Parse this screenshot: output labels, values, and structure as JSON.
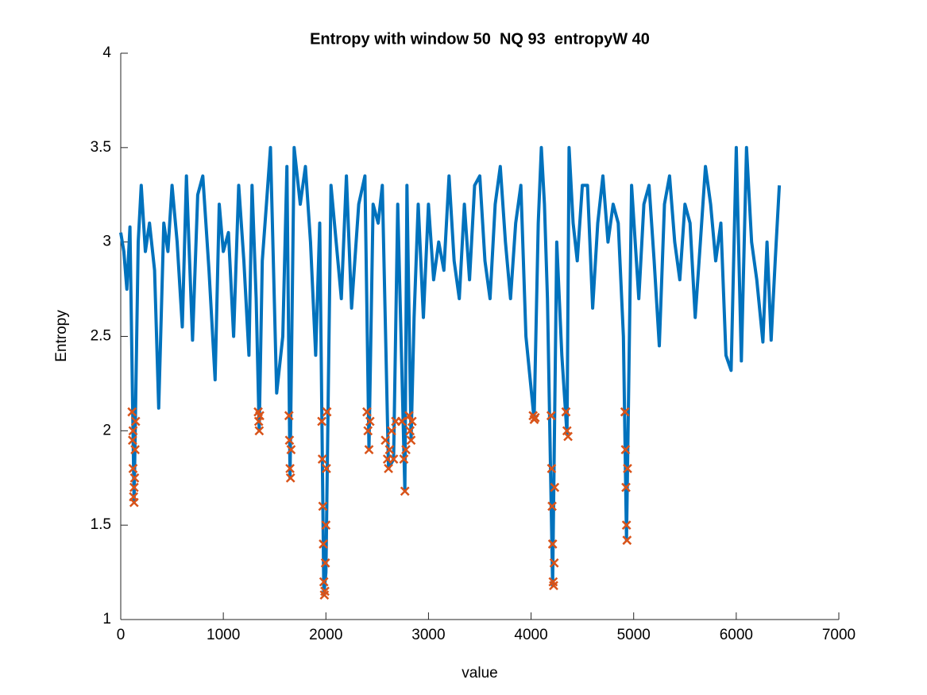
{
  "chart_data": {
    "type": "line",
    "title": "Entropy with window 50  NQ 93  entropyW 40",
    "xlabel": "value",
    "ylabel": "Entropy",
    "xlim": [
      0,
      7000
    ],
    "xticks": [
      0,
      1000,
      2000,
      3000,
      4000,
      5000,
      6000,
      7000
    ],
    "ylim": [
      1,
      4
    ],
    "yticks": [
      1,
      1.5,
      2,
      2.5,
      3,
      3.5,
      4
    ],
    "series": [
      {
        "type": "line",
        "color": "#0072bd",
        "x": [
          0,
          30,
          60,
          90,
          130,
          170,
          200,
          240,
          280,
          330,
          370,
          420,
          460,
          500,
          550,
          600,
          640,
          700,
          750,
          800,
          860,
          920,
          960,
          1000,
          1050,
          1100,
          1150,
          1200,
          1250,
          1280,
          1320,
          1350,
          1380,
          1420,
          1460,
          1520,
          1580,
          1620,
          1650,
          1690,
          1750,
          1800,
          1850,
          1900,
          1940,
          1980,
          2000,
          2050,
          2100,
          2150,
          2200,
          2250,
          2320,
          2380,
          2420,
          2460,
          2510,
          2550,
          2610,
          2660,
          2700,
          2770,
          2790,
          2830,
          2860,
          2900,
          2950,
          3000,
          3050,
          3100,
          3150,
          3200,
          3250,
          3300,
          3350,
          3400,
          3450,
          3500,
          3550,
          3600,
          3650,
          3700,
          3750,
          3800,
          3850,
          3900,
          3950,
          4030,
          4070,
          4100,
          4130,
          4160,
          4210,
          4250,
          4300,
          4350,
          4370,
          4410,
          4450,
          4500,
          4550,
          4600,
          4650,
          4700,
          4750,
          4800,
          4850,
          4900,
          4930,
          4980,
          5050,
          5100,
          5150,
          5200,
          5250,
          5300,
          5350,
          5400,
          5450,
          5500,
          5550,
          5600,
          5650,
          5700,
          5750,
          5800,
          5850,
          5900,
          5950,
          6000,
          6050,
          6100,
          6150,
          6200,
          6260,
          6300,
          6340,
          6380,
          6420
        ],
        "values": [
          3.05,
          2.95,
          2.75,
          3.08,
          1.62,
          3.0,
          3.3,
          2.95,
          3.1,
          2.85,
          2.12,
          3.1,
          2.95,
          3.3,
          3.0,
          2.55,
          3.35,
          2.48,
          3.25,
          3.35,
          2.85,
          2.27,
          3.2,
          2.95,
          3.05,
          2.5,
          3.3,
          2.9,
          2.4,
          3.3,
          2.7,
          2.0,
          2.9,
          3.2,
          3.5,
          2.2,
          2.5,
          3.4,
          1.75,
          3.5,
          3.2,
          3.4,
          3.0,
          2.4,
          3.1,
          1.13,
          1.25,
          3.3,
          3.0,
          2.7,
          3.35,
          2.65,
          3.2,
          3.35,
          1.9,
          3.2,
          3.1,
          3.3,
          1.8,
          1.85,
          3.2,
          1.68,
          3.3,
          1.95,
          2.6,
          3.2,
          2.6,
          3.2,
          2.8,
          3.0,
          2.85,
          3.35,
          2.9,
          2.7,
          3.2,
          2.8,
          3.3,
          3.35,
          2.9,
          2.7,
          3.2,
          3.4,
          3.0,
          2.7,
          3.1,
          3.3,
          2.5,
          2.06,
          3.1,
          3.5,
          3.2,
          2.7,
          1.18,
          3.0,
          2.4,
          1.98,
          3.5,
          3.1,
          2.9,
          3.3,
          3.3,
          2.65,
          3.1,
          3.35,
          3.0,
          3.2,
          3.1,
          2.5,
          1.42,
          3.3,
          2.7,
          3.2,
          3.3,
          2.9,
          2.45,
          3.2,
          3.35,
          3.0,
          2.8,
          3.2,
          3.1,
          2.6,
          3.0,
          3.4,
          3.2,
          2.9,
          3.1,
          2.4,
          2.32,
          3.5,
          2.37,
          3.5,
          3.0,
          2.8,
          2.47,
          3.0,
          2.48,
          2.9,
          3.3
        ]
      },
      {
        "type": "scatter",
        "color": "#d95319",
        "marker": "x",
        "x": [
          110,
          115,
          120,
          125,
          130,
          135,
          140,
          145,
          120,
          130,
          1340,
          1345,
          1350,
          1355,
          1640,
          1645,
          1650,
          1655,
          1660,
          1960,
          1965,
          1970,
          1975,
          1980,
          1985,
          1990,
          1995,
          2000,
          2005,
          2010,
          2400,
          2410,
          2420,
          2430,
          2580,
          2600,
          2610,
          2620,
          2640,
          2660,
          2680,
          2740,
          2760,
          2770,
          2780,
          2810,
          2820,
          2830,
          2840,
          4020,
          4030,
          4040,
          4195,
          4200,
          4205,
          4210,
          4215,
          4220,
          4225,
          4230,
          4340,
          4350,
          4360,
          4915,
          4920,
          4925,
          4930,
          4935,
          4940
        ],
        "values": [
          2.1,
          1.95,
          1.8,
          1.65,
          1.62,
          1.75,
          1.9,
          2.05,
          2.0,
          1.7,
          2.1,
          2.05,
          2.0,
          2.08,
          2.08,
          1.95,
          1.8,
          1.75,
          1.9,
          2.05,
          1.85,
          1.6,
          1.4,
          1.2,
          1.13,
          1.15,
          1.3,
          1.5,
          1.8,
          2.1,
          2.1,
          2.0,
          1.9,
          2.05,
          1.95,
          1.85,
          1.8,
          1.9,
          2.0,
          1.85,
          2.05,
          2.05,
          1.85,
          1.68,
          1.9,
          2.08,
          2.0,
          1.95,
          2.05,
          2.08,
          2.06,
          2.07,
          2.08,
          1.8,
          1.6,
          1.4,
          1.2,
          1.18,
          1.3,
          1.7,
          2.1,
          2.0,
          1.97,
          2.1,
          1.9,
          1.7,
          1.5,
          1.42,
          1.8
        ]
      }
    ]
  }
}
